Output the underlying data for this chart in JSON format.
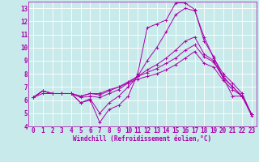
{
  "xlabel": "Windchill (Refroidissement éolien,°C)",
  "bg_color": "#c8eaea",
  "line_color": "#aa00aa",
  "grid_color": "#ffffff",
  "xlim": [
    -0.5,
    23.5
  ],
  "ylim": [
    4,
    13.5
  ],
  "xticks": [
    0,
    1,
    2,
    3,
    4,
    5,
    6,
    7,
    8,
    9,
    10,
    11,
    12,
    13,
    14,
    15,
    16,
    17,
    18,
    19,
    20,
    21,
    22,
    23
  ],
  "yticks": [
    4,
    5,
    6,
    7,
    8,
    9,
    10,
    11,
    12,
    13
  ],
  "lines": [
    [
      6.2,
      6.7,
      6.5,
      6.5,
      6.5,
      5.8,
      6.0,
      4.3,
      5.3,
      5.6,
      6.3,
      8.0,
      11.5,
      11.8,
      12.1,
      13.4,
      13.4,
      12.9,
      10.5,
      9.3,
      7.7,
      6.3,
      6.3,
      4.8
    ],
    [
      6.2,
      6.7,
      6.5,
      6.5,
      6.5,
      5.8,
      6.1,
      5.0,
      5.8,
      6.3,
      7.0,
      7.8,
      9.0,
      10.0,
      11.2,
      12.5,
      13.0,
      12.8,
      10.8,
      9.2,
      8.0,
      7.3,
      6.5,
      4.9
    ],
    [
      6.2,
      6.7,
      6.5,
      6.5,
      6.5,
      6.2,
      6.3,
      6.2,
      6.5,
      6.8,
      7.3,
      7.8,
      8.3,
      8.7,
      9.2,
      9.8,
      10.5,
      10.8,
      9.5,
      9.0,
      7.8,
      7.0,
      6.3,
      4.9
    ],
    [
      6.2,
      6.7,
      6.5,
      6.5,
      6.5,
      6.3,
      6.5,
      6.4,
      6.7,
      7.0,
      7.4,
      7.8,
      8.1,
      8.4,
      8.8,
      9.2,
      9.8,
      10.2,
      9.3,
      8.9,
      7.7,
      7.0,
      6.3,
      4.9
    ],
    [
      6.2,
      6.5,
      6.5,
      6.5,
      6.5,
      6.3,
      6.5,
      6.5,
      6.8,
      7.0,
      7.3,
      7.6,
      7.8,
      8.0,
      8.3,
      8.7,
      9.2,
      9.7,
      8.8,
      8.5,
      7.5,
      6.8,
      6.3,
      4.9
    ]
  ],
  "tick_fontsize": 5.5,
  "xlabel_fontsize": 5.5
}
